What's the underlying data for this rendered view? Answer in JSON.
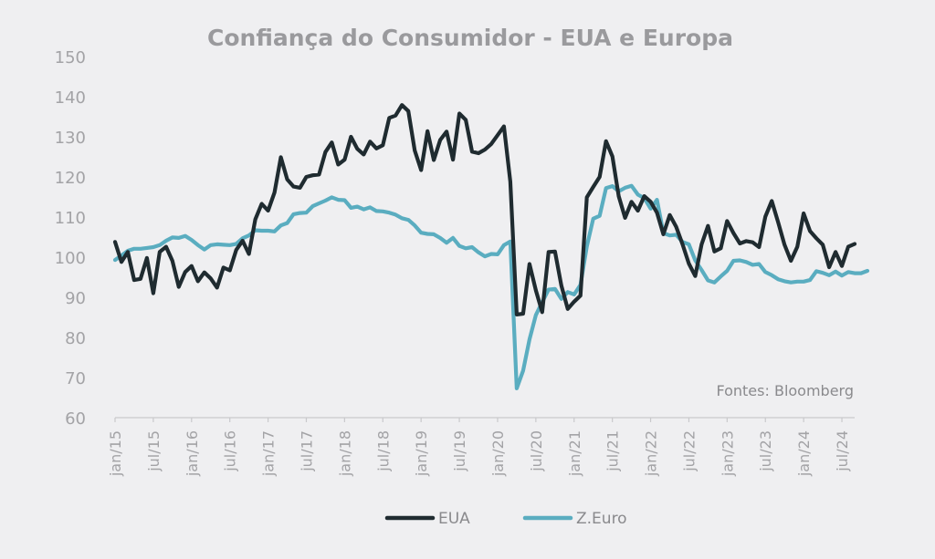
{
  "chart_data": {
    "type": "line",
    "title": "Confiança do Consumidor - EUA e Europa",
    "source_note": "Fontes: Bloomberg",
    "xlabel": "",
    "ylabel": "",
    "ylim": [
      60,
      150
    ],
    "yticks": [
      60,
      70,
      80,
      90,
      100,
      110,
      120,
      130,
      140,
      150
    ],
    "x_tick_labels": [
      "jan/15",
      "jul/15",
      "jan/16",
      "jul/16",
      "jan/17",
      "jul/17",
      "jan/18",
      "jul/18",
      "jan/19",
      "jul/19",
      "jan/20",
      "jul/20",
      "jan/21",
      "jul/21",
      "jan/22",
      "jul/22",
      "jan/23",
      "jul/23",
      "jan/24",
      "jul/24"
    ],
    "x_start": "2015-01",
    "legend_position": "bottom",
    "grid": false,
    "series": [
      {
        "name": "EUA",
        "color": "#1f2b30",
        "values": [
          103.8,
          98.8,
          101.3,
          94.3,
          94.6,
          99.8,
          91.0,
          101.3,
          102.6,
          99.1,
          92.6,
          96.3,
          97.8,
          94.0,
          96.2,
          94.7,
          92.4,
          97.4,
          96.7,
          101.8,
          104.1,
          100.8,
          109.4,
          113.3,
          111.6,
          116.1,
          124.9,
          119.4,
          117.6,
          117.3,
          120.0,
          120.4,
          120.6,
          126.2,
          128.6,
          123.1,
          124.3,
          130.0,
          127.0,
          125.6,
          128.8,
          127.1,
          127.9,
          134.7,
          135.3,
          137.9,
          136.4,
          126.6,
          121.7,
          131.4,
          124.2,
          129.2,
          131.3,
          124.3,
          135.8,
          134.2,
          126.3,
          125.9,
          126.8,
          128.2,
          130.4,
          132.6,
          118.8,
          85.7,
          85.9,
          98.3,
          91.7,
          86.3,
          101.3,
          101.4,
          92.9,
          87.1,
          88.9,
          90.4,
          114.9,
          117.5,
          120.0,
          128.9,
          125.1,
          115.2,
          109.8,
          113.8,
          111.6,
          115.2,
          113.8,
          111.1,
          105.7,
          110.5,
          107.6,
          103.2,
          98.4,
          95.3,
          103.2,
          107.8,
          101.4,
          102.2,
          109.0,
          106.0,
          103.4,
          104.0,
          103.7,
          102.5,
          110.1,
          114.0,
          108.7,
          103.1,
          99.1,
          102.6,
          110.9,
          106.5,
          104.7,
          103.1,
          97.5,
          101.3,
          97.8,
          102.6,
          103.3
        ]
      },
      {
        "name": "Z.Euro",
        "color": "#5aadc0",
        "values": [
          99.3,
          100.4,
          101.6,
          102.1,
          102.1,
          102.3,
          102.5,
          103.0,
          104.1,
          104.9,
          104.8,
          105.3,
          104.3,
          103.0,
          101.9,
          103.0,
          103.2,
          103.1,
          103.0,
          103.3,
          104.7,
          105.4,
          106.7,
          106.6,
          106.6,
          106.4,
          107.9,
          108.5,
          110.7,
          111.0,
          111.1,
          112.7,
          113.4,
          114.1,
          114.9,
          114.3,
          114.2,
          112.3,
          112.6,
          111.9,
          112.4,
          111.5,
          111.4,
          111.1,
          110.6,
          109.7,
          109.3,
          107.9,
          106.1,
          105.8,
          105.7,
          104.8,
          103.6,
          104.8,
          102.8,
          102.2,
          102.5,
          101.2,
          100.2,
          100.8,
          100.7,
          103.0,
          103.9,
          67.3,
          71.7,
          79.5,
          85.6,
          88.8,
          91.9,
          92.1,
          89.6,
          91.3,
          90.7,
          93.1,
          102.7,
          109.6,
          110.3,
          117.2,
          117.7,
          116.4,
          117.3,
          117.8,
          115.6,
          114.7,
          112.1,
          114.3,
          106.0,
          105.4,
          105.6,
          103.8,
          103.2,
          99.2,
          96.8,
          94.2,
          93.7,
          95.2,
          96.6,
          99.1,
          99.2,
          98.8,
          98.1,
          98.3,
          96.3,
          95.5,
          94.5,
          94.0,
          93.7,
          93.9,
          93.9,
          94.3,
          96.5,
          96.1,
          95.5,
          96.4,
          95.4,
          96.3,
          96.0,
          96.0,
          96.6
        ]
      }
    ]
  }
}
